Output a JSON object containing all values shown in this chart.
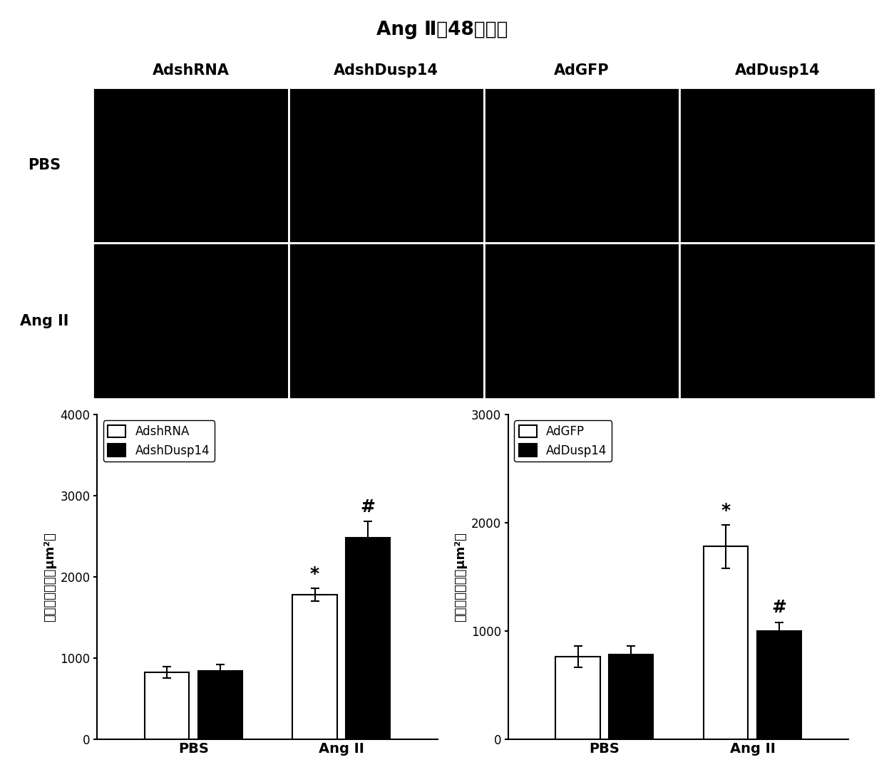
{
  "title": "Ang Ⅱ（48小时）",
  "col_labels": [
    "AdshRNA",
    "AdshDusp14",
    "AdGFP",
    "AdDusp14"
  ],
  "row_labels": [
    "PBS",
    "Ang II"
  ],
  "chart1": {
    "legend": [
      "AdshRNA",
      "AdshDusp14"
    ],
    "colors": [
      "white",
      "black"
    ],
    "groups": [
      "PBS",
      "Ang II"
    ],
    "values": [
      [
        820,
        840
      ],
      [
        1780,
        2480
      ]
    ],
    "errors": [
      [
        70,
        80
      ],
      [
        80,
        200
      ]
    ],
    "ylabel": "细胞表面面积（μm²）",
    "ylim": [
      0,
      4000
    ],
    "yticks": [
      0,
      1000,
      2000,
      3000,
      4000
    ]
  },
  "chart2": {
    "legend": [
      "AdGFP",
      "AdDusp14"
    ],
    "colors": [
      "white",
      "black"
    ],
    "groups": [
      "PBS",
      "Ang II"
    ],
    "values": [
      [
        760,
        780
      ],
      [
        1780,
        1000
      ]
    ],
    "errors": [
      [
        100,
        80
      ],
      [
        200,
        80
      ]
    ],
    "ylabel": "细胞表面面积（μm²）",
    "ylim": [
      0,
      3000
    ],
    "yticks": [
      0,
      1000,
      2000,
      3000
    ]
  }
}
